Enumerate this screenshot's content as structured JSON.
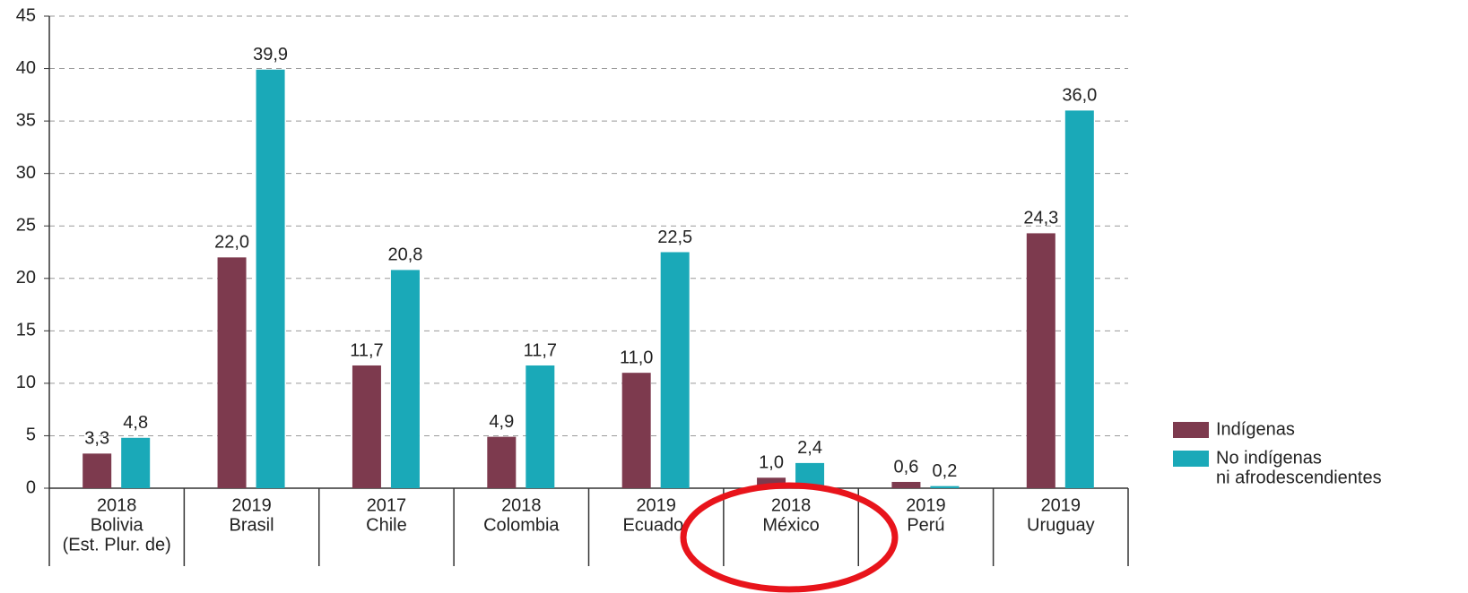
{
  "chart_data": {
    "type": "bar",
    "categories": [
      [
        "2018",
        "Bolivia",
        "(Est. Plur. de)"
      ],
      [
        "2019",
        "Brasil"
      ],
      [
        "2017",
        "Chile"
      ],
      [
        "2018",
        "Colombia"
      ],
      [
        "2019",
        "Ecuador"
      ],
      [
        "2018",
        "México"
      ],
      [
        "2019",
        "Perú"
      ],
      [
        "2019",
        "Uruguay"
      ]
    ],
    "series": [
      {
        "name": "Indígenas",
        "color": "#7d3a4e",
        "values": [
          3.3,
          22.0,
          11.7,
          4.9,
          11.0,
          1.0,
          0.6,
          24.3
        ],
        "value_labels": [
          "3,3",
          "22,0",
          "11,7",
          "4,9",
          "11,0",
          "1,0",
          "0,6",
          "24,3"
        ]
      },
      {
        "name": [
          "No indígenas",
          "ni afrodescendientes"
        ],
        "color": "#1aa9b8",
        "values": [
          4.8,
          39.9,
          20.8,
          11.7,
          22.5,
          2.4,
          0.2,
          36.0
        ],
        "value_labels": [
          "4,8",
          "39,9",
          "20,8",
          "11,7",
          "22,5",
          "2,4",
          "0,2",
          "36,0"
        ]
      }
    ],
    "ylim": [
      0,
      45
    ],
    "yticks": [
      0,
      5,
      10,
      15,
      20,
      25,
      30,
      35,
      40,
      45
    ],
    "grid": true,
    "legend": "right"
  }
}
